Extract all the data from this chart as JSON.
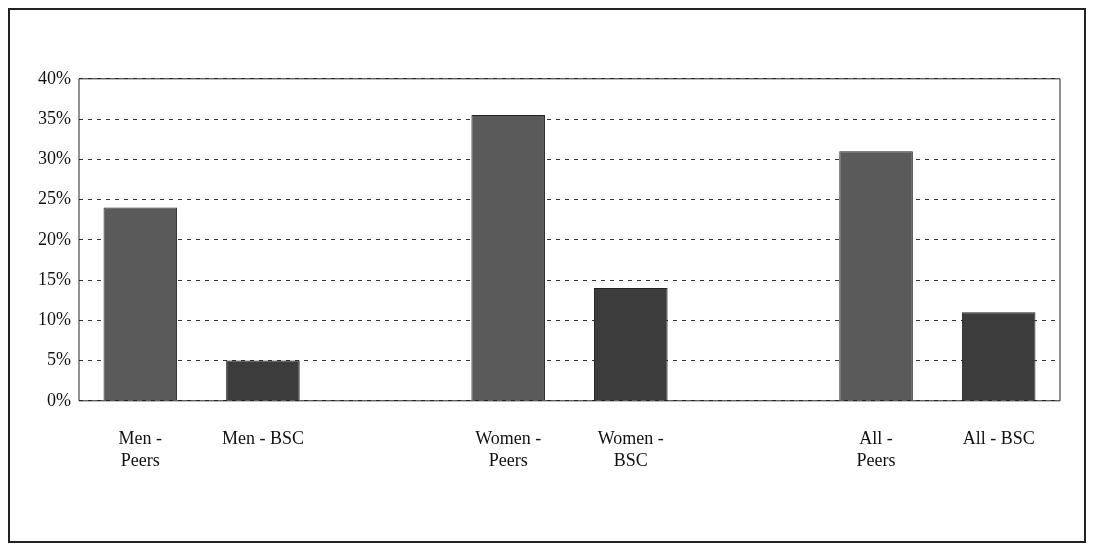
{
  "chart_data": {
    "type": "bar",
    "categories": [
      "Men - Peers",
      "Men - BSC",
      null,
      "Women - Peers",
      "Women - BSC",
      null,
      "All - Peers",
      "All - BSC"
    ],
    "values": [
      24,
      5,
      null,
      35.5,
      14,
      null,
      31,
      11
    ],
    "colors": [
      "#5a5a5a",
      "#3c3c3c",
      "#5a5a5a",
      "#5a5a5a",
      "#3c3c3c",
      "#5a5a5a",
      "#5a5a5a",
      "#3c3c3c"
    ],
    "ylim": [
      0,
      40
    ],
    "yticks": [
      {
        "value": 0,
        "label": "0%"
      },
      {
        "value": 5,
        "label": "5%"
      },
      {
        "value": 10,
        "label": "10%"
      },
      {
        "value": 15,
        "label": "15%"
      },
      {
        "value": 20,
        "label": "20%"
      },
      {
        "value": 25,
        "label": "25%"
      },
      {
        "value": 30,
        "label": "30%"
      },
      {
        "value": 35,
        "label": "35%"
      },
      {
        "value": 40,
        "label": "40%"
      }
    ],
    "grid": "y",
    "legend": false
  }
}
